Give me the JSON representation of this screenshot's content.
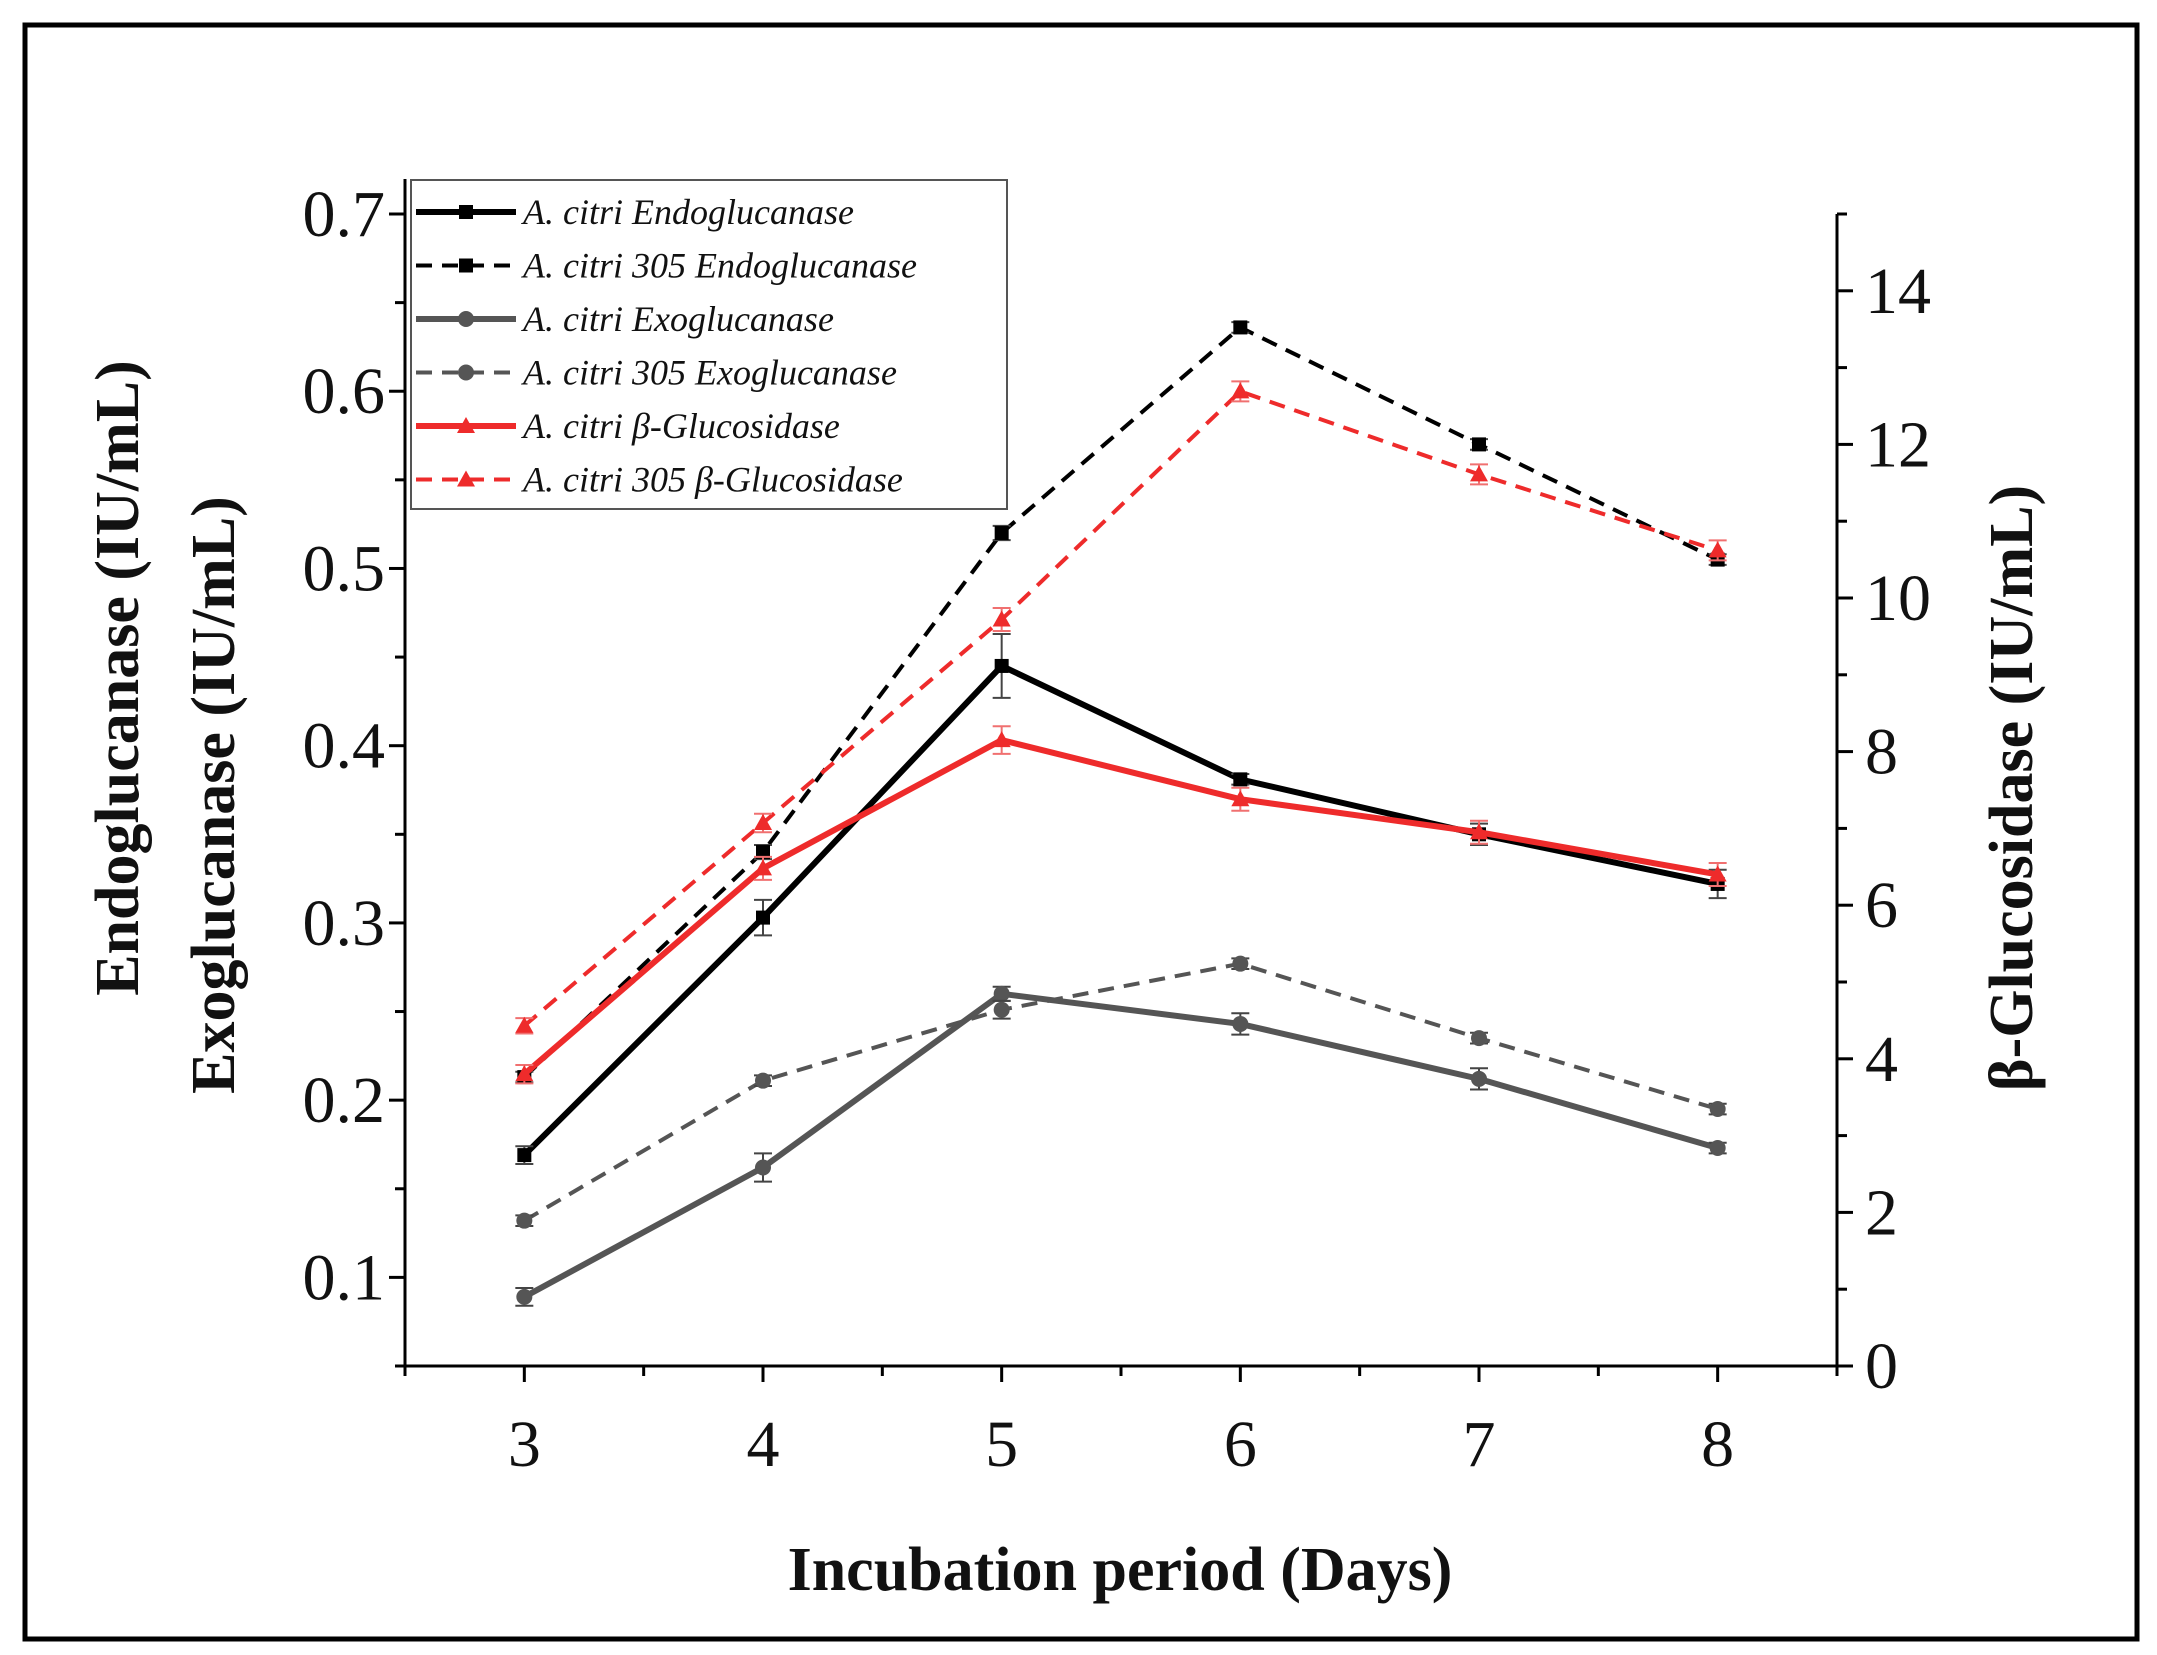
{
  "chart_data": {
    "type": "line",
    "title": "",
    "xlabel": "Incubation period (Days)",
    "ylabel_left_1": "Endoglucanase (IU/mL)",
    "ylabel_left_2": "Exoglucanase (IU/mL)",
    "ylabel_right": "β-Glucosidase (IU/mL)",
    "x": [
      3,
      4,
      5,
      6,
      7,
      8
    ],
    "xlim": [
      2.5,
      8.5
    ],
    "ylim_left": [
      0.05,
      0.7
    ],
    "ylim_right": [
      0,
      15
    ],
    "xticks": [
      "3",
      "4",
      "5",
      "6",
      "7",
      "8"
    ],
    "yticks_left": [
      "0.1",
      "0.2",
      "0.3",
      "0.4",
      "0.5",
      "0.6",
      "0.7"
    ],
    "yticks_right": [
      "0",
      "2",
      "4",
      "6",
      "8",
      "10",
      "12",
      "14"
    ],
    "legend_position": "top-left",
    "grid": false,
    "series": [
      {
        "name": "A. citri Endoglucanase",
        "axis": "left",
        "color": "#000000",
        "dash": false,
        "marker": "square",
        "values": [
          0.169,
          0.303,
          0.445,
          0.381,
          0.35,
          0.322
        ],
        "errors": [
          0.005,
          0.01,
          0.018,
          0.003,
          0.006,
          0.008
        ]
      },
      {
        "name": "A. citri 305 Endoglucanase",
        "axis": "left",
        "color": "#000000",
        "dash": true,
        "marker": "square",
        "values": [
          0.213,
          0.34,
          0.52,
          0.636,
          0.57,
          0.505
        ],
        "errors": [
          0.003,
          0.004,
          0.004,
          0.003,
          0.003,
          0.003
        ]
      },
      {
        "name": "A. citri Exoglucanase",
        "axis": "left",
        "color": "#555555",
        "dash": false,
        "marker": "circle",
        "values": [
          0.089,
          0.162,
          0.26,
          0.243,
          0.212,
          0.173
        ],
        "errors": [
          0.005,
          0.008,
          0.004,
          0.006,
          0.006,
          0.003
        ]
      },
      {
        "name": "A. citri 305 Exoglucanase",
        "axis": "left",
        "color": "#555555",
        "dash": true,
        "marker": "circle",
        "values": [
          0.132,
          0.211,
          0.251,
          0.277,
          0.235,
          0.195
        ],
        "errors": [
          0.003,
          0.003,
          0.005,
          0.003,
          0.003,
          0.003
        ]
      },
      {
        "name": "A. citri β-Glucosidase",
        "axis": "right",
        "color": "#ee2b2b",
        "dash": false,
        "marker": "triangle",
        "values": [
          3.8,
          6.48,
          8.15,
          7.38,
          6.95,
          6.4
        ],
        "errors": [
          0.12,
          0.15,
          0.18,
          0.15,
          0.15,
          0.15
        ]
      },
      {
        "name": "A. citri 305 β-Glucosidase",
        "axis": "right",
        "color": "#ee2b2b",
        "dash": true,
        "marker": "triangle",
        "values": [
          4.43,
          7.07,
          9.72,
          12.69,
          11.61,
          10.62
        ],
        "errors": [
          0.1,
          0.12,
          0.15,
          0.13,
          0.13,
          0.13
        ]
      }
    ]
  }
}
